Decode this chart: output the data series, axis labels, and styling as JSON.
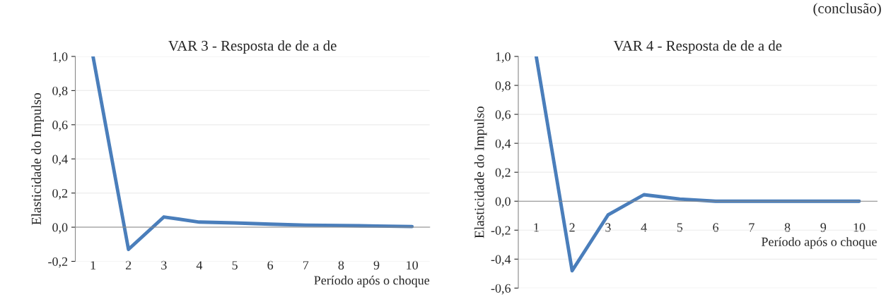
{
  "chart_data": [
    {
      "type": "line",
      "title": "VAR 3 - Resposta de de a de",
      "xlabel": "Período após o choque",
      "ylabel": "Elasticidade do Impulso",
      "categories": [
        "1",
        "2",
        "3",
        "4",
        "5",
        "6",
        "7",
        "8",
        "9",
        "10"
      ],
      "series": [
        {
          "color": "#4a7ebb",
          "values": [
            1.0,
            -0.13,
            0.06,
            0.03,
            0.025,
            0.018,
            0.012,
            0.01,
            0.007,
            0.004
          ]
        }
      ],
      "ylim": [
        -0.2,
        1.0
      ],
      "yticks": [
        {
          "value": -0.2,
          "label": "-0,2"
        },
        {
          "value": 0.0,
          "label": "0,0"
        },
        {
          "value": 0.2,
          "label": "0,2"
        },
        {
          "value": 0.4,
          "label": "0,4"
        },
        {
          "value": 0.6,
          "label": "0,6"
        },
        {
          "value": 0.8,
          "label": "0,8"
        },
        {
          "value": 1.0,
          "label": "1,0"
        }
      ],
      "grid": "y",
      "marker": "none",
      "line_style": "solid"
    },
    {
      "type": "line",
      "title": "VAR 4 - Resposta de de a de",
      "xlabel": "Período após o choque",
      "ylabel": "Elasticidade do Impulso",
      "annotations": [
        "(conclusão)"
      ],
      "categories": [
        "1",
        "2",
        "3",
        "4",
        "5",
        "6",
        "7",
        "8",
        "9",
        "10"
      ],
      "series": [
        {
          "color": "#4a7ebb",
          "values": [
            1.0,
            -0.48,
            -0.095,
            0.045,
            0.015,
            0.0,
            0.0,
            0.0,
            0.0,
            0.0
          ]
        }
      ],
      "ylim": [
        -0.6,
        1.0
      ],
      "yticks": [
        {
          "value": -0.6,
          "label": "-0,6"
        },
        {
          "value": -0.4,
          "label": "-0,4"
        },
        {
          "value": -0.2,
          "label": "-0,2"
        },
        {
          "value": 0.0,
          "label": "0,0"
        },
        {
          "value": 0.2,
          "label": "0,2"
        },
        {
          "value": 0.4,
          "label": "0,4"
        },
        {
          "value": 0.6,
          "label": "0,6"
        },
        {
          "value": 0.8,
          "label": "0,8"
        },
        {
          "value": 1.0,
          "label": "1,0"
        }
      ],
      "grid": "y",
      "marker": "none",
      "line_style": "solid"
    }
  ]
}
